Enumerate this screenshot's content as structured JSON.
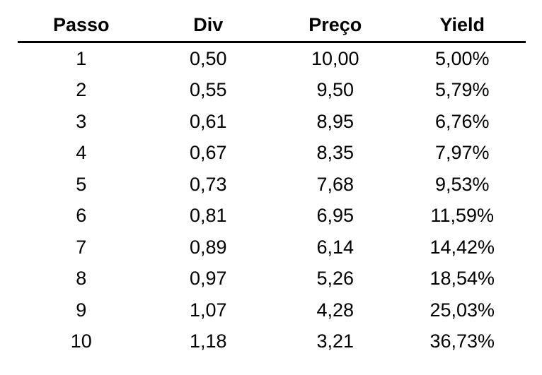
{
  "colors": {
    "text": "#000000",
    "background": "#ffffff",
    "header_rule": "#000000"
  },
  "chart_data": {
    "type": "table",
    "title": "",
    "columns": [
      "Passo",
      "Div",
      "Preço",
      "Yield"
    ],
    "rows": [
      [
        "1",
        "0,50",
        "10,00",
        "5,00%"
      ],
      [
        "2",
        "0,55",
        "9,50",
        "5,79%"
      ],
      [
        "3",
        "0,61",
        "8,95",
        "6,76%"
      ],
      [
        "4",
        "0,67",
        "8,35",
        "7,97%"
      ],
      [
        "5",
        "0,73",
        "7,68",
        "9,53%"
      ],
      [
        "6",
        "0,81",
        "6,95",
        "11,59%"
      ],
      [
        "7",
        "0,89",
        "6,14",
        "14,42%"
      ],
      [
        "8",
        "0,97",
        "5,26",
        "18,54%"
      ],
      [
        "9",
        "1,07",
        "4,28",
        "25,03%"
      ],
      [
        "10",
        "1,18",
        "3,21",
        "36,73%"
      ]
    ],
    "layout_hints": {
      "header_bold": true,
      "single_rule_under_header": true,
      "outer_borders": false,
      "cell_alignment": "center"
    }
  }
}
